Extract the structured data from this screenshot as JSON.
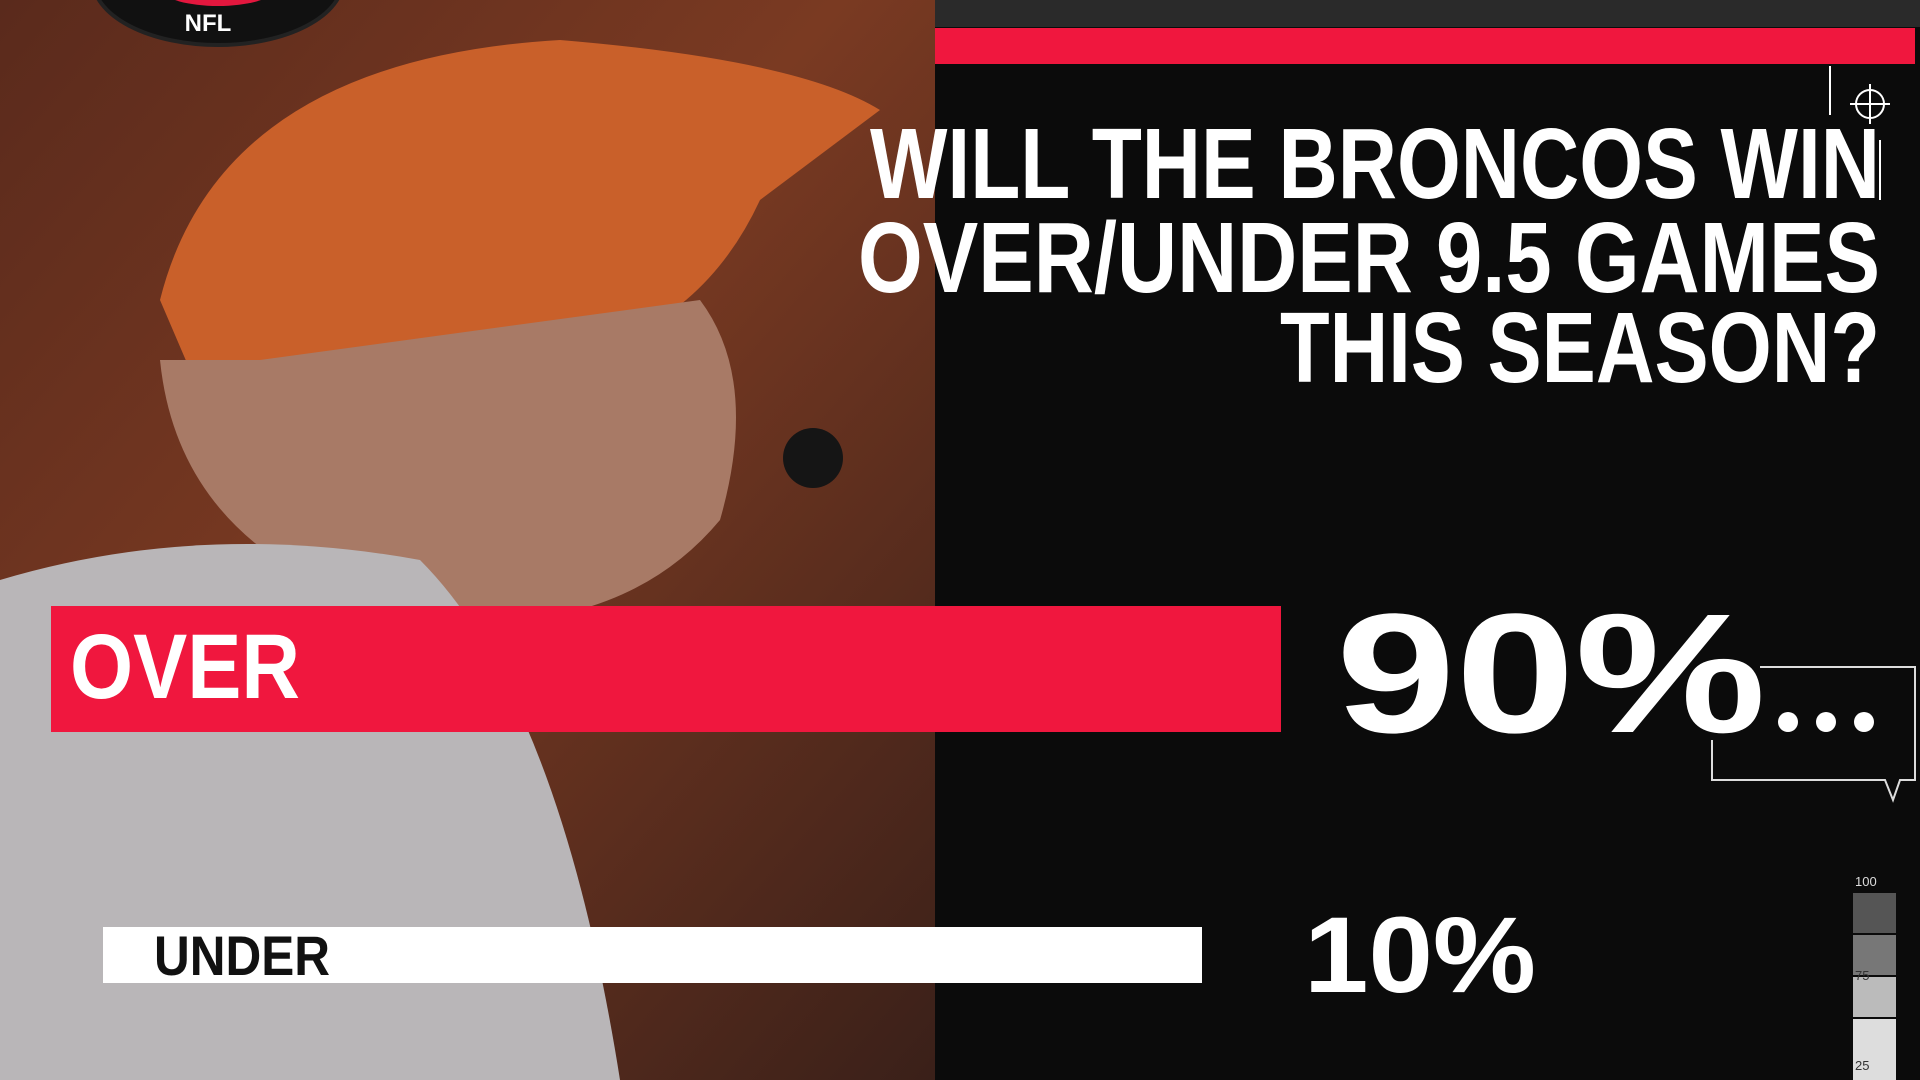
{
  "logo": {
    "text": "NFL"
  },
  "question": {
    "lines": [
      "WILL THE BRONCOS WIN",
      "OVER/UNDER 9.5 GAMES",
      "THIS SEASON?"
    ]
  },
  "options": [
    {
      "label": "OVER",
      "percent": "90%"
    },
    {
      "label": "UNDER",
      "percent": "10%"
    }
  ],
  "gauge": {
    "labels": [
      "100",
      "75",
      "25"
    ]
  }
}
